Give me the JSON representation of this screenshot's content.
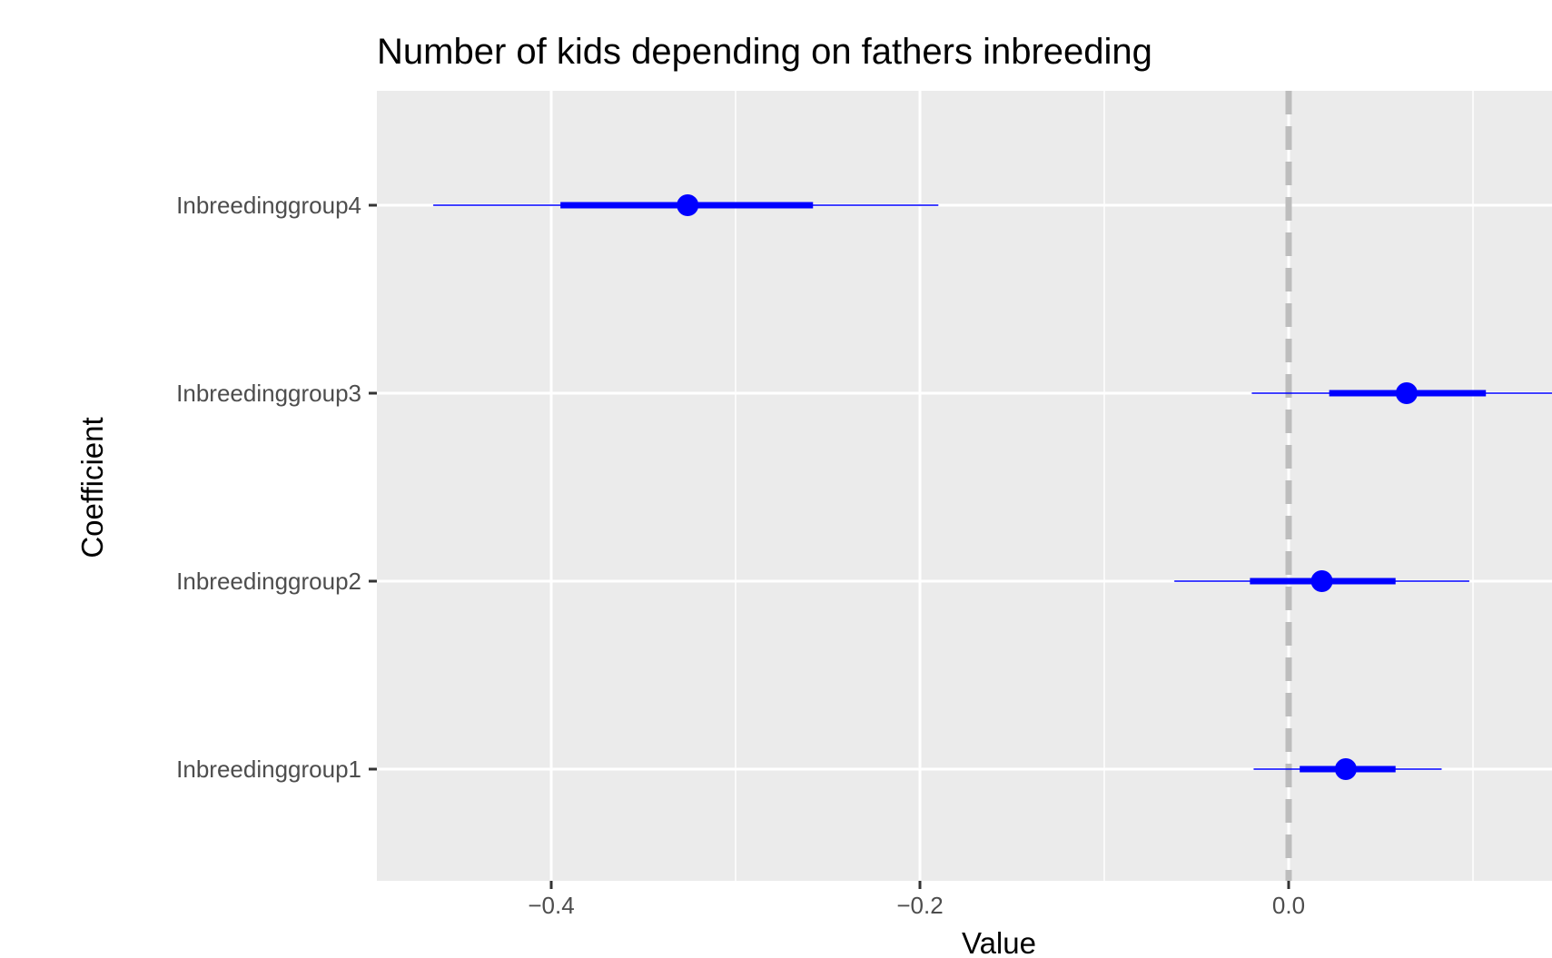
{
  "chart_data": {
    "type": "coefficient-plot",
    "title": "Number of kids depending on fathers inbreeding",
    "xlabel": "Value",
    "ylabel": "Coefficient",
    "xlim": [
      -0.49,
      0.14
    ],
    "x_ticks": [
      -0.4,
      -0.2,
      0.0
    ],
    "x_tick_labels": [
      "−0.4",
      "−0.2",
      "0.0"
    ],
    "reference_line": 0.0,
    "grid": true,
    "point_color": "#0000ff",
    "background": "#ebebeb",
    "categories": [
      "Inbreedinggroup4",
      "Inbreedinggroup3",
      "Inbreedinggroup2",
      "Inbreedinggroup1"
    ],
    "estimates": [
      {
        "label": "Inbreedinggroup4",
        "value": -0.326,
        "inner": [
          -0.395,
          -0.258
        ],
        "outer": [
          -0.464,
          -0.19
        ]
      },
      {
        "label": "Inbreedinggroup3",
        "value": 0.064,
        "inner": [
          0.022,
          0.107
        ],
        "outer": [
          -0.02,
          0.15
        ]
      },
      {
        "label": "Inbreedinggroup2",
        "value": 0.018,
        "inner": [
          -0.021,
          0.058
        ],
        "outer": [
          -0.062,
          0.098
        ]
      },
      {
        "label": "Inbreedinggroup1",
        "value": 0.031,
        "inner": [
          0.006,
          0.058
        ],
        "outer": [
          -0.019,
          0.083
        ]
      }
    ]
  }
}
